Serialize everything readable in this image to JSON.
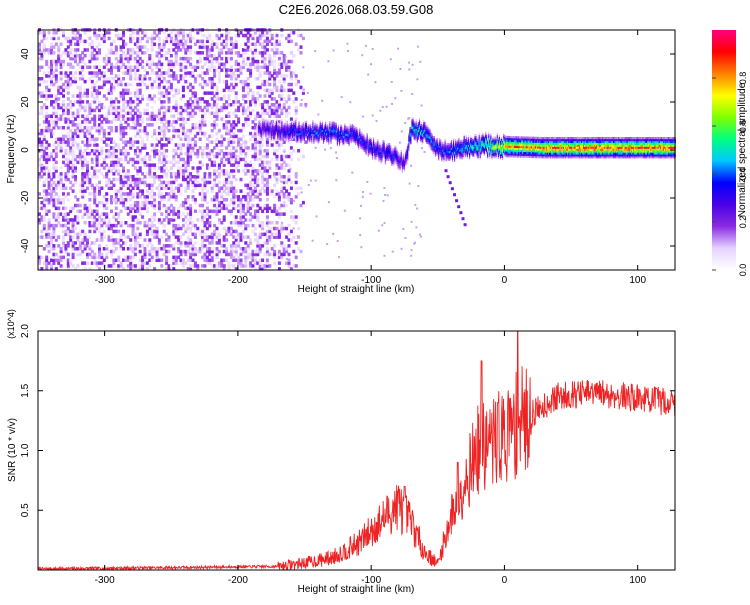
{
  "title": "C2E6.2026.068.03.59.G08",
  "colors": {
    "frame": "#000000",
    "snr_line": "#ee2222",
    "background": "#ffffff"
  },
  "chart_data": [
    {
      "type": "heatmap",
      "name": "spectrogram",
      "xlabel": "Height of straight line (km)",
      "ylabel": "Frequency (Hz)",
      "xlim": [
        -350,
        128
      ],
      "ylim": [
        -50,
        50
      ],
      "x_ticks": [
        -300,
        -200,
        -100,
        0,
        100
      ],
      "y_ticks": [
        -40,
        -20,
        0,
        20,
        40
      ],
      "colorbar": {
        "label": "Normalized spectral amplitude",
        "range": [
          0,
          1
        ],
        "ticks": [
          "0.0",
          "0.2",
          "0.4",
          "0.6",
          "0.8"
        ],
        "colormap": [
          "#ffffff",
          "#e6d2ff",
          "#8a2be2",
          "#4b00e6",
          "#0000ff",
          "#00c8ff",
          "#00ff80",
          "#80ff00",
          "#ffff00",
          "#ff8000",
          "#ff0000",
          "#ff0080"
        ]
      },
      "noise_region": {
        "x_range": [
          -350,
          -170
        ],
        "y_range": [
          -50,
          50
        ],
        "typical_amplitude": 0.12
      },
      "signal_track": [
        {
          "x": -185,
          "f": 8.5,
          "a": 0.28
        },
        {
          "x": -160,
          "f": 8.0,
          "a": 0.4
        },
        {
          "x": -130,
          "f": 7.0,
          "a": 0.45
        },
        {
          "x": -115,
          "f": 6.0,
          "a": 0.42
        },
        {
          "x": -100,
          "f": 1.0,
          "a": 0.38
        },
        {
          "x": -85,
          "f": -2.0,
          "a": 0.4
        },
        {
          "x": -75,
          "f": -6.0,
          "a": 0.3
        },
        {
          "x": -70,
          "f": 9.0,
          "a": 0.55
        },
        {
          "x": -60,
          "f": 7.0,
          "a": 0.5
        },
        {
          "x": -50,
          "f": 0.0,
          "a": 0.42
        },
        {
          "x": -40,
          "f": 0.0,
          "a": 0.45
        },
        {
          "x": -25,
          "f": 1.5,
          "a": 0.55
        },
        {
          "x": -10,
          "f": 2.0,
          "a": 0.7
        },
        {
          "x": 0,
          "f": 1.5,
          "a": 0.85
        },
        {
          "x": 30,
          "f": 1.0,
          "a": 0.92
        },
        {
          "x": 60,
          "f": 1.0,
          "a": 0.95
        },
        {
          "x": 100,
          "f": 1.0,
          "a": 0.95
        },
        {
          "x": 128,
          "f": 1.0,
          "a": 0.95
        }
      ]
    },
    {
      "type": "line",
      "name": "snr",
      "xlabel": "Height of straight line (km)",
      "ylabel": "SNR (10 * v/v)",
      "multiplier_label": "(x10^4)",
      "xlim": [
        -350,
        128
      ],
      "ylim": [
        0,
        2.0
      ],
      "x_ticks": [
        -300,
        -200,
        -100,
        0,
        100
      ],
      "y_ticks": [
        "0.5",
        "1.0",
        "1.5",
        "2.0"
      ],
      "envelope": {
        "x": [
          -350,
          -250,
          -170,
          -150,
          -130,
          -110,
          -95,
          -80,
          -70,
          -60,
          -50,
          -40,
          -30,
          -20,
          -10,
          0,
          10,
          20,
          30,
          40,
          50,
          70,
          100,
          128
        ],
        "y": [
          0.01,
          0.02,
          0.03,
          0.06,
          0.1,
          0.22,
          0.38,
          0.55,
          0.4,
          0.15,
          0.05,
          0.45,
          0.75,
          1.0,
          1.05,
          1.12,
          1.22,
          1.3,
          1.38,
          1.45,
          1.47,
          1.48,
          1.44,
          1.4
        ]
      },
      "spikes": [
        {
          "x": -75,
          "y": 0.7
        },
        {
          "x": -35,
          "y": 0.9
        },
        {
          "x": -17,
          "y": 1.75
        },
        {
          "x": -5,
          "y": 1.4
        },
        {
          "x": 10,
          "y": 2.0
        }
      ]
    }
  ]
}
